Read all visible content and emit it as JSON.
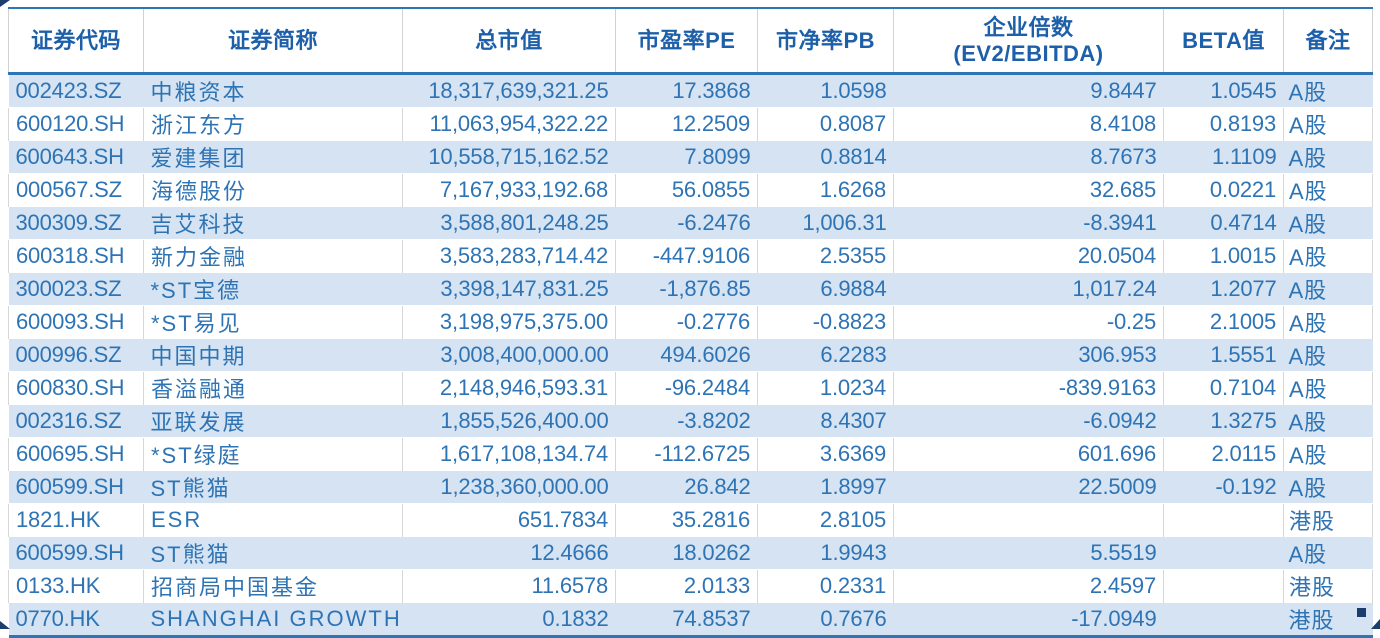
{
  "table": {
    "columns": [
      {
        "key": "code",
        "title": "证券代码",
        "subtitle": "",
        "align": "left"
      },
      {
        "key": "name",
        "title": "证券简称",
        "subtitle": "",
        "align": "left"
      },
      {
        "key": "market_cap",
        "title": "总市值",
        "subtitle": "",
        "align": "right"
      },
      {
        "key": "pe",
        "title": "市盈率PE",
        "subtitle": "",
        "align": "right"
      },
      {
        "key": "pb",
        "title": "市净率PB",
        "subtitle": "",
        "align": "right"
      },
      {
        "key": "ev_ebitda",
        "title": "企业倍数",
        "subtitle": "(EV2/EBITDA)",
        "align": "right"
      },
      {
        "key": "beta",
        "title": "BETA值",
        "subtitle": "",
        "align": "right"
      },
      {
        "key": "note",
        "title": "备注",
        "subtitle": "",
        "align": "left"
      }
    ],
    "rows": [
      [
        "002423.SZ",
        "中粮资本",
        "18,317,639,321.25",
        "17.3868",
        "1.0598",
        "9.8447",
        "1.0545",
        "A股"
      ],
      [
        "600120.SH",
        "浙江东方",
        "11,063,954,322.22",
        "12.2509",
        "0.8087",
        "8.4108",
        "0.8193",
        "A股"
      ],
      [
        "600643.SH",
        "爱建集团",
        "10,558,715,162.52",
        "7.8099",
        "0.8814",
        "8.7673",
        "1.1109",
        "A股"
      ],
      [
        "000567.SZ",
        "海德股份",
        "7,167,933,192.68",
        "56.0855",
        "1.6268",
        "32.685",
        "0.0221",
        "A股"
      ],
      [
        "300309.SZ",
        "吉艾科技",
        "3,588,801,248.25",
        "-6.2476",
        "1,006.31",
        "-8.3941",
        "0.4714",
        "A股"
      ],
      [
        "600318.SH",
        "新力金融",
        "3,583,283,714.42",
        "-447.9106",
        "2.5355",
        "20.0504",
        "1.0015",
        "A股"
      ],
      [
        "300023.SZ",
        "*ST宝德",
        "3,398,147,831.25",
        "-1,876.85",
        "6.9884",
        "1,017.24",
        "1.2077",
        "A股"
      ],
      [
        "600093.SH",
        "*ST易见",
        "3,198,975,375.00",
        "-0.2776",
        "-0.8823",
        "-0.25",
        "2.1005",
        "A股"
      ],
      [
        "000996.SZ",
        "中国中期",
        "3,008,400,000.00",
        "494.6026",
        "6.2283",
        "306.953",
        "1.5551",
        "A股"
      ],
      [
        "600830.SH",
        "香溢融通",
        "2,148,946,593.31",
        "-96.2484",
        "1.0234",
        "-839.9163",
        "0.7104",
        "A股"
      ],
      [
        "002316.SZ",
        "亚联发展",
        "1,855,526,400.00",
        "-3.8202",
        "8.4307",
        "-6.0942",
        "1.3275",
        "A股"
      ],
      [
        "600695.SH",
        "*ST绿庭",
        "1,617,108,134.74",
        "-112.6725",
        "3.6369",
        "601.696",
        "2.0115",
        "A股"
      ],
      [
        "600599.SH",
        "ST熊猫",
        "1,238,360,000.00",
        "26.842",
        "1.8997",
        "22.5009",
        "-0.192",
        "A股"
      ],
      [
        "1821.HK",
        "ESR",
        "651.7834",
        "35.2816",
        "2.8105",
        "",
        "",
        "港股"
      ],
      [
        "600599.SH",
        "ST熊猫",
        "12.4666",
        "18.0262",
        "1.9943",
        "5.5519",
        "",
        "A股"
      ],
      [
        "0133.HK",
        "招商局中国基金",
        "11.6578",
        "2.0133",
        "0.2331",
        "2.4597",
        "",
        "港股"
      ],
      [
        "0770.HK",
        "SHANGHAI GROWTH",
        "0.1832",
        "74.8537",
        "0.7676",
        "-17.0949",
        "",
        "港股"
      ]
    ]
  },
  "colors": {
    "accent_border": "#2E75B6",
    "header_text": "#1D5FA9",
    "body_text": "#2E74B5",
    "band_fill": "#D5E3F2",
    "gridline": "#D6D6D6",
    "selection_handle": "#1B3E6F"
  }
}
